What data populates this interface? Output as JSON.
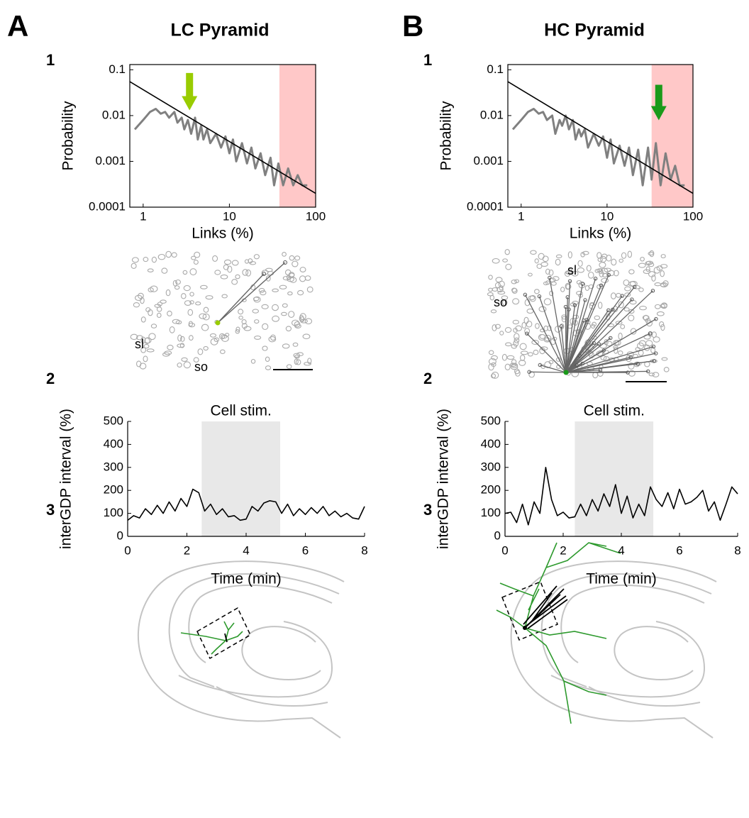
{
  "panels": [
    {
      "letter": "A",
      "title": "LC Pyramid",
      "numbers": [
        "1",
        "2",
        "3"
      ],
      "layers": [
        "sl",
        "so"
      ]
    },
    {
      "letter": "B",
      "title": "HC Pyramid",
      "numbers": [
        "1",
        "2",
        "3"
      ],
      "layers": [
        "sl",
        "so"
      ]
    }
  ],
  "chart_data": [
    {
      "type": "line",
      "xscale": "log",
      "yscale": "log",
      "xlim": [
        0.7,
        100
      ],
      "ylim": [
        0.0001,
        0.13
      ],
      "xticks": [
        1,
        10,
        100
      ],
      "yticks": [
        0.0001,
        0.001,
        0.01,
        0.1
      ],
      "xlabel": "Links (%)",
      "ylabel": "Probability",
      "shade": {
        "x": [
          38,
          100
        ],
        "color": "#ffc8c8"
      },
      "arrow": {
        "x": 3.45,
        "y": [
          0.085,
          0.013
        ],
        "color": "#99cc00"
      },
      "series": [
        {
          "color": "#808080",
          "x": [
            0.8,
            1,
            1.2,
            1.4,
            1.6,
            1.8,
            2,
            2.3,
            2.5,
            2.8,
            3,
            3.3,
            3.6,
            4,
            4.3,
            4.7,
            5,
            5.5,
            6,
            7,
            8,
            9,
            10,
            11,
            12,
            14,
            16,
            18,
            20,
            23,
            26,
            30,
            33,
            37,
            42,
            48,
            55,
            62,
            70,
            80
          ],
          "values": [
            0.005,
            0.008,
            0.012,
            0.014,
            0.011,
            0.012,
            0.009,
            0.012,
            0.007,
            0.009,
            0.005,
            0.008,
            0.004,
            0.009,
            0.003,
            0.006,
            0.003,
            0.005,
            0.0025,
            0.004,
            0.002,
            0.0035,
            0.0015,
            0.003,
            0.001,
            0.0025,
            0.0009,
            0.002,
            0.0007,
            0.0015,
            0.0005,
            0.0012,
            0.0003,
            0.0009,
            0.0003,
            0.0007,
            0.0003,
            0.0005,
            0.0003,
            0.0003
          ]
        },
        {
          "color": "#000000",
          "x": [
            0.7,
            100
          ],
          "values": [
            0.055,
            0.0002
          ]
        }
      ]
    },
    {
      "type": "line",
      "xscale": "log",
      "yscale": "log",
      "xlim": [
        0.7,
        100
      ],
      "ylim": [
        0.0001,
        0.13
      ],
      "xticks": [
        1,
        10,
        100
      ],
      "yticks": [
        0.0001,
        0.001,
        0.01,
        0.1
      ],
      "xlabel": "Links (%)",
      "ylabel": "Probability",
      "shade": {
        "x": [
          33,
          100
        ],
        "color": "#ffc8c8"
      },
      "arrow": {
        "x": 40,
        "y": [
          0.047,
          0.0079
        ],
        "color": "#1a9a1a"
      },
      "series": [
        {
          "color": "#808080",
          "x": [
            0.8,
            1,
            1.2,
            1.4,
            1.6,
            1.8,
            2,
            2.3,
            2.5,
            2.8,
            3,
            3.3,
            3.6,
            4,
            4.3,
            4.7,
            5,
            5.5,
            6,
            7,
            8,
            9,
            10,
            11,
            12,
            14,
            16,
            18,
            20,
            23,
            26,
            30,
            33,
            37,
            42,
            48,
            55,
            62,
            70,
            80
          ],
          "values": [
            0.005,
            0.008,
            0.012,
            0.014,
            0.011,
            0.012,
            0.008,
            0.01,
            0.004,
            0.008,
            0.006,
            0.01,
            0.005,
            0.008,
            0.003,
            0.005,
            0.0035,
            0.005,
            0.002,
            0.004,
            0.0022,
            0.0035,
            0.0012,
            0.003,
            0.0009,
            0.0022,
            0.0008,
            0.002,
            0.0005,
            0.0018,
            0.0003,
            0.002,
            0.0004,
            0.0025,
            0.0003,
            0.0015,
            0.0004,
            0.0008,
            0.0003,
            0.0003
          ]
        },
        {
          "color": "#000000",
          "x": [
            0.7,
            100
          ],
          "values": [
            0.055,
            0.0002
          ]
        }
      ]
    },
    {
      "type": "line",
      "xlim": [
        0,
        8
      ],
      "ylim": [
        0,
        500
      ],
      "xticks": [
        0,
        2,
        4,
        6,
        8
      ],
      "yticks": [
        0,
        100,
        200,
        300,
        400,
        500
      ],
      "xlabel": "Time (min)",
      "ylabel": "interGDP interval (%)",
      "shade": {
        "x": [
          2.5,
          5.15
        ],
        "color": "#e8e8e8",
        "label": "Cell stim."
      },
      "series": [
        {
          "color": "#000000",
          "x": [
            0,
            0.2,
            0.4,
            0.6,
            0.8,
            1,
            1.2,
            1.4,
            1.6,
            1.8,
            2,
            2.2,
            2.4,
            2.6,
            2.8,
            3,
            3.2,
            3.4,
            3.6,
            3.8,
            4,
            4.2,
            4.4,
            4.6,
            4.8,
            5,
            5.2,
            5.4,
            5.6,
            5.8,
            6,
            6.2,
            6.4,
            6.6,
            6.8,
            7,
            7.2,
            7.4,
            7.6,
            7.8,
            8
          ],
          "values": [
            70,
            90,
            80,
            120,
            95,
            135,
            100,
            150,
            110,
            165,
            130,
            205,
            190,
            110,
            140,
            95,
            120,
            85,
            90,
            70,
            75,
            130,
            110,
            145,
            155,
            150,
            100,
            140,
            90,
            120,
            95,
            125,
            100,
            130,
            90,
            110,
            85,
            100,
            80,
            75,
            130
          ]
        }
      ]
    },
    {
      "type": "line",
      "xlim": [
        0,
        8
      ],
      "ylim": [
        0,
        500
      ],
      "xticks": [
        0,
        2,
        4,
        6,
        8
      ],
      "yticks": [
        0,
        100,
        200,
        300,
        400,
        500
      ],
      "xlabel": "Time (min)",
      "ylabel": "interGDP interval (%)",
      "shade": {
        "x": [
          2.4,
          5.1
        ],
        "color": "#e8e8e8",
        "label": "Cell stim."
      },
      "series": [
        {
          "color": "#000000",
          "x": [
            0,
            0.2,
            0.4,
            0.6,
            0.8,
            1,
            1.2,
            1.4,
            1.6,
            1.8,
            2,
            2.2,
            2.4,
            2.6,
            2.8,
            3,
            3.2,
            3.4,
            3.6,
            3.8,
            4,
            4.2,
            4.4,
            4.6,
            4.8,
            5,
            5.2,
            5.4,
            5.6,
            5.8,
            6,
            6.2,
            6.4,
            6.6,
            6.8,
            7,
            7.2,
            7.4,
            7.6,
            7.8,
            8
          ],
          "values": [
            100,
            105,
            60,
            140,
            50,
            150,
            100,
            300,
            160,
            90,
            105,
            80,
            85,
            140,
            90,
            160,
            110,
            185,
            130,
            225,
            100,
            175,
            80,
            140,
            90,
            215,
            160,
            130,
            190,
            120,
            205,
            140,
            150,
            170,
            200,
            110,
            150,
            70,
            140,
            215,
            185
          ]
        }
      ]
    }
  ]
}
